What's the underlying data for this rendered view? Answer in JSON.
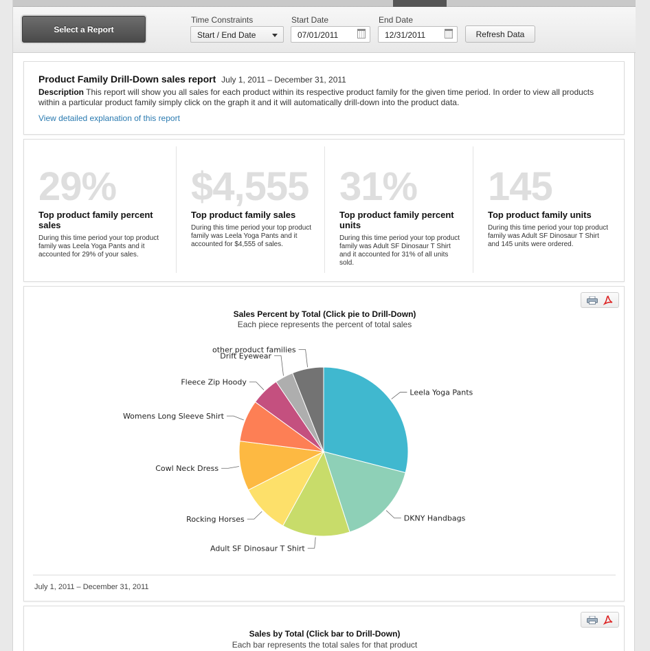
{
  "toolbar": {
    "select_report_label": "Select a Report",
    "time_constraints_label": "Time Constraints",
    "time_constraints_value": "Start / End Date",
    "start_date_label": "Start Date",
    "start_date_value": "07/01/2011",
    "end_date_label": "End Date",
    "end_date_value": "12/31/2011",
    "refresh_label": "Refresh Data"
  },
  "report": {
    "title": "Product Family Drill-Down sales report",
    "range": "July 1, 2011 – December 31, 2011",
    "description_label": "Description",
    "description_text": "This report will show you all sales for each product within its respective product family for the given time period. In order to view all products within a particular product family simply click on the graph it and it will automatically drill-down into the product data.",
    "detail_link": "View detailed explanation of this report"
  },
  "kpis": [
    {
      "value": "29%",
      "title": "Top product family percent sales",
      "text": "During this time period your top product family was Leela Yoga Pants and it accounted for 29% of your sales."
    },
    {
      "value": "$4,555",
      "title": "Top product family sales",
      "text": "During this time period your top product family was Leela Yoga Pants and it accounted for $4,555 of sales."
    },
    {
      "value": "31%",
      "title": "Top product family percent units",
      "text": "During this time period your top product family was Adult SF Dinosaur T Shirt and it accounted for 31% of all units sold."
    },
    {
      "value": "145",
      "title": "Top product family units",
      "text": "During this time period your top product family was Adult SF Dinosaur T Shirt and 145 units were ordered."
    }
  ],
  "chart_data": [
    {
      "type": "pie",
      "title": "Sales Percent by Total (Click pie to Drill-Down)",
      "subtitle": "Each piece represents the percent of total sales",
      "categories": [
        "Leela Yoga Pants",
        "DKNY Handbags",
        "Adult SF Dinosaur T Shirt",
        "Rocking Horses",
        "Cowl Neck Dress",
        "Womens Long Sleeve Shirt",
        "Fleece Zip Hoody",
        "Drift Eyewear",
        "other product families"
      ],
      "values": [
        29,
        16,
        13,
        9.5,
        9.5,
        8,
        5.5,
        3.5,
        6
      ],
      "colors": [
        "#40b8cf",
        "#8ed0b7",
        "#c8dc6a",
        "#fde06a",
        "#fdb942",
        "#fd7f55",
        "#c4507f",
        "#aeaeae",
        "#737373"
      ],
      "legend": "none",
      "footer": "July 1, 2011 – December 31, 2011"
    },
    {
      "type": "bar",
      "title": "Sales by Total (Click bar to Drill-Down)",
      "subtitle": "Each bar represents the total sales for that product"
    }
  ],
  "icons": {
    "print": "print-icon",
    "pdf": "pdf-icon",
    "calendar": "calendar-icon"
  }
}
